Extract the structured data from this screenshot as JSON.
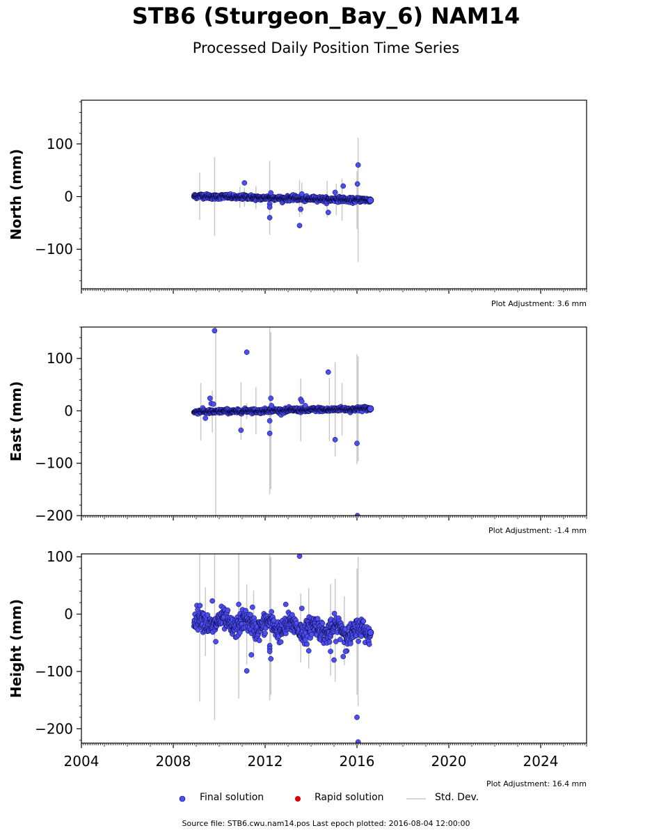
{
  "header": {
    "title": "STB6 (Sturgeon_Bay_6) NAM14",
    "subtitle": "Processed Daily Position Time Series"
  },
  "legend": {
    "final": "Final solution",
    "rapid": "Rapid solution",
    "stddev": "Std. Dev."
  },
  "footer": {
    "source": "Source file: STB6.cwu.nam14.pos  Last epoch plotted: 2016-08-04 12:00:00"
  },
  "colors": {
    "final": "#4d4df2",
    "rapid": "#e00000",
    "stddev": "#c8c8c8"
  },
  "chart_data": [
    {
      "type": "scatter",
      "ylabel": "North (mm)",
      "xlim": [
        2004,
        2026
      ],
      "ylim": [
        -175,
        183
      ],
      "yticks": [
        -100,
        0,
        100
      ],
      "xticks": [],
      "adjustment": "Plot Adjustment: 3.6 mm",
      "series_name": "Final solution",
      "time_range": [
        2008.9,
        2016.59
      ],
      "trend": [
        1,
        -7
      ],
      "scatter_sd": 2.2,
      "outliers": [
        [
          2011.1,
          26
        ],
        [
          2012.2,
          -14
        ],
        [
          2012.2,
          -20
        ],
        [
          2012.2,
          -40
        ],
        [
          2012.25,
          7
        ],
        [
          2013.5,
          -55
        ],
        [
          2013.55,
          -24
        ],
        [
          2013.6,
          5
        ],
        [
          2014.75,
          -30
        ],
        [
          2015.05,
          8
        ],
        [
          2015.4,
          20
        ],
        [
          2016.02,
          24
        ],
        [
          2016.05,
          60
        ]
      ],
      "errorbars": [
        [
          2009.15,
          45
        ],
        [
          2009.8,
          75
        ],
        [
          2010.9,
          20
        ],
        [
          2011.1,
          18
        ],
        [
          2011.6,
          22
        ],
        [
          2012.2,
          70
        ],
        [
          2013.5,
          35
        ],
        [
          2013.6,
          30
        ],
        [
          2014.7,
          35
        ],
        [
          2015.1,
          30
        ],
        [
          2015.35,
          40
        ],
        [
          2016.0,
          55
        ],
        [
          2016.05,
          118
        ]
      ]
    },
    {
      "type": "scatter",
      "ylabel": "East (mm)",
      "xlim": [
        2004,
        2026
      ],
      "ylim": [
        -200,
        160
      ],
      "yticks": [
        -200,
        -100,
        0,
        100
      ],
      "xticks": [],
      "adjustment": "Plot Adjustment: -1.4 mm",
      "series_name": "Final solution",
      "time_range": [
        2008.9,
        2016.59
      ],
      "trend": [
        -2,
        4
      ],
      "scatter_sd": 2.0,
      "outliers": [
        [
          2009.4,
          -14
        ],
        [
          2009.6,
          24
        ],
        [
          2009.65,
          14
        ],
        [
          2009.75,
          13
        ],
        [
          2009.8,
          153
        ],
        [
          2010.95,
          -37
        ],
        [
          2011.2,
          112
        ],
        [
          2012.2,
          -19
        ],
        [
          2012.2,
          -43
        ],
        [
          2012.25,
          24
        ],
        [
          2012.28,
          10
        ],
        [
          2013.55,
          22
        ],
        [
          2013.6,
          18
        ],
        [
          2013.75,
          10
        ],
        [
          2014.75,
          74
        ],
        [
          2015.05,
          -55
        ],
        [
          2016.0,
          -62
        ],
        [
          2016.02,
          -200
        ]
      ],
      "errorbars": [
        [
          2009.2,
          55
        ],
        [
          2009.7,
          40
        ],
        [
          2009.85,
          210
        ],
        [
          2010.95,
          55
        ],
        [
          2011.2,
          15
        ],
        [
          2011.6,
          45
        ],
        [
          2012.2,
          160
        ],
        [
          2012.25,
          150
        ],
        [
          2013.55,
          60
        ],
        [
          2014.8,
          60
        ],
        [
          2015.05,
          90
        ],
        [
          2015.35,
          50
        ],
        [
          2016.0,
          105
        ],
        [
          2016.05,
          100
        ]
      ]
    },
    {
      "type": "scatter",
      "ylabel": "Height (mm)",
      "xlim": [
        2004,
        2026
      ],
      "ylim": [
        -225,
        105
      ],
      "yticks": [
        -200,
        -100,
        0,
        100
      ],
      "xticks": [
        2004,
        2008,
        2012,
        2016,
        2020,
        2024
      ],
      "adjustment": "Plot Adjustment: 16.4 mm",
      "series_name": "Final solution",
      "time_range": [
        2008.9,
        2016.59
      ],
      "trend": [
        -12,
        -32
      ],
      "scatter_sd": 9.0,
      "outliers": [
        [
          2009.7,
          23
        ],
        [
          2009.85,
          -48
        ],
        [
          2010.85,
          17
        ],
        [
          2011.2,
          -99
        ],
        [
          2011.4,
          -71
        ],
        [
          2011.45,
          12
        ],
        [
          2012.2,
          -55
        ],
        [
          2012.2,
          -60
        ],
        [
          2012.2,
          -65
        ],
        [
          2012.25,
          -78
        ],
        [
          2012.9,
          17
        ],
        [
          2013.5,
          101
        ],
        [
          2013.6,
          10
        ],
        [
          2013.75,
          -45
        ],
        [
          2013.9,
          -64
        ],
        [
          2014.85,
          -65
        ],
        [
          2015.0,
          -80
        ],
        [
          2015.4,
          -74
        ],
        [
          2015.5,
          -65
        ],
        [
          2016.0,
          -180
        ],
        [
          2016.05,
          -223
        ]
      ],
      "errorbars": [
        [
          2009.15,
          140
        ],
        [
          2009.4,
          60
        ],
        [
          2009.8,
          170
        ],
        [
          2010.85,
          130
        ],
        [
          2011.2,
          70
        ],
        [
          2011.5,
          60
        ],
        [
          2012.2,
          130
        ],
        [
          2012.25,
          120
        ],
        [
          2013.55,
          60
        ],
        [
          2013.9,
          70
        ],
        [
          2014.85,
          80
        ],
        [
          2015.05,
          90
        ],
        [
          2015.45,
          60
        ],
        [
          2016.0,
          110
        ],
        [
          2016.05,
          130
        ]
      ]
    }
  ]
}
